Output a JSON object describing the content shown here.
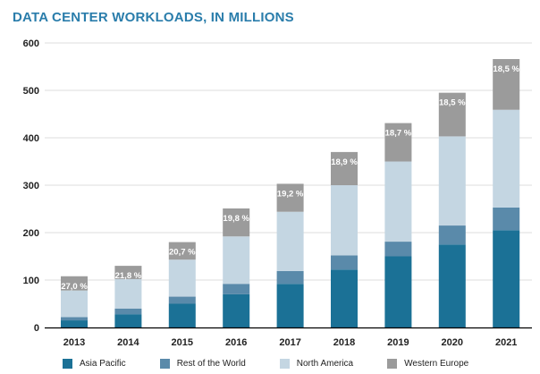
{
  "chart_data": {
    "type": "bar",
    "stacked": true,
    "title": "DATA CENTER WORKLOADS, IN MILLIONS",
    "xlabel": "",
    "ylabel": "",
    "ylim": [
      0,
      600
    ],
    "yticks": [
      "0",
      "100",
      "200",
      "300",
      "400",
      "500",
      "600"
    ],
    "ytick_values": [
      0,
      100,
      200,
      300,
      400,
      500,
      600
    ],
    "grid": true,
    "legend_position": "bottom",
    "categories": [
      "2013",
      "2014",
      "2015",
      "2016",
      "2017",
      "2018",
      "2019",
      "2020",
      "2021"
    ],
    "series": [
      {
        "name": "Asia Pacific",
        "color": "#1b7196",
        "values": [
          15,
          28,
          50,
          70,
          92,
          122,
          150,
          175,
          205
        ]
      },
      {
        "name": "Rest of the World",
        "color": "#5a8aaa",
        "values": [
          7,
          12,
          15,
          22,
          27,
          30,
          31,
          40,
          48
        ]
      },
      {
        "name": "North America",
        "color": "#c4d6e2",
        "values": [
          56,
          62,
          78,
          100,
          125,
          148,
          169,
          188,
          206
        ]
      },
      {
        "name": "Western Europe",
        "color": "#9b9b9b",
        "values": [
          30,
          28,
          37,
          59,
          59,
          70,
          81,
          92,
          107
        ]
      }
    ],
    "annotations": [
      "27,0 %",
      "21,8 %",
      "20,7 %",
      "19,8 %",
      "19,2 %",
      "18,9 %",
      "18,7 %",
      "18,5 %",
      "18,5 %"
    ],
    "colors": {
      "title": "#2a7dab",
      "grid": "#dddddd",
      "axis": "#000000",
      "text": "#222222",
      "annotation": "#ffffff"
    }
  }
}
